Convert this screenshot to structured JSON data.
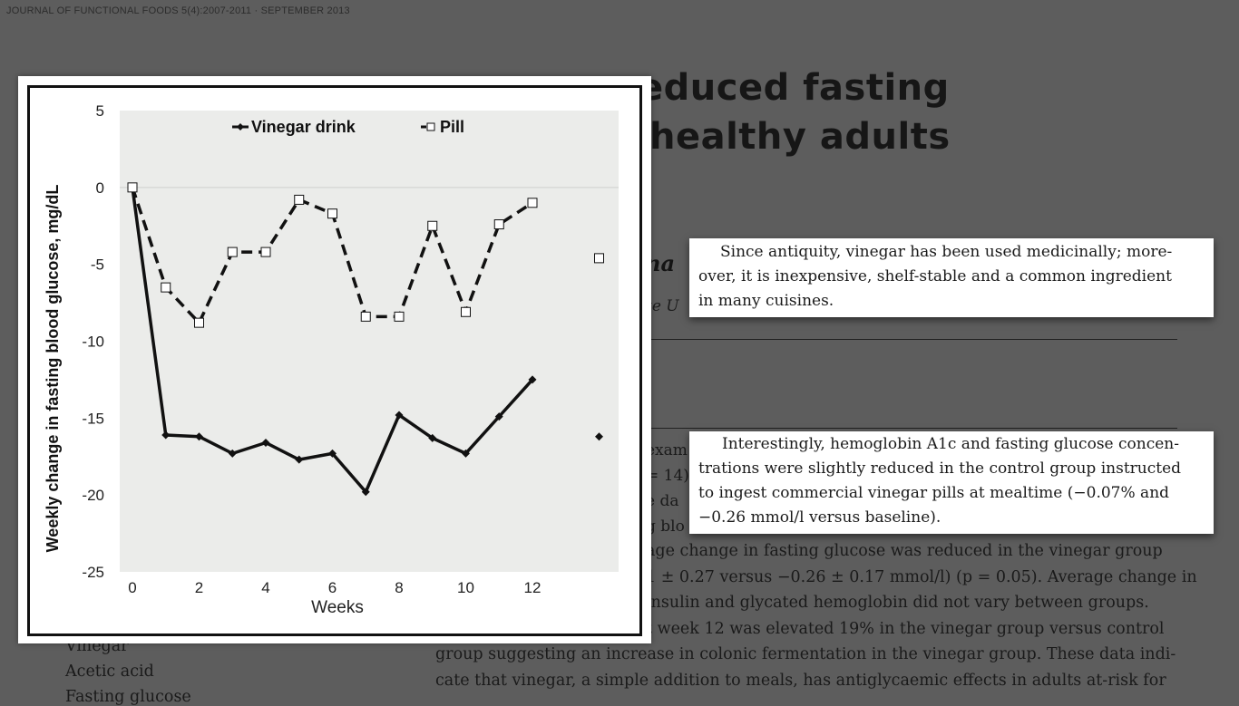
{
  "header": {
    "journal": "JOURNAL OF FUNCTIONAL FOODS 5(4):2007-2011 · SEPTEMBER 2013"
  },
  "article": {
    "title_visible_line1": "educed fasting",
    "title_visible_line2": "healthy adults",
    "author_fragment": "na",
    "affiliation_fragment": "te U",
    "abstract_fragments": [
      "exam",
      "= 14)",
      "e da",
      "g blo"
    ],
    "abstract_lines": [
      "age change in fasting glucose was reduced in the vinegar group",
      "1 ± 0.27 versus −0.26 ± 0.17 mmol/l) (p = 0.05). Average change in",
      "insulin and glycated hemoglobin did not vary between groups.",
      "t week 12 was elevated 19% in the vinegar group versus control",
      "group suggesting an increase in colonic fermentation in the vinegar group. These data indi-",
      "cate that vinegar, a simple addition to meals, has antiglycaemic effects in adults at-risk for"
    ],
    "keywords": [
      "Vinegar",
      "Acetic acid",
      "Fasting glucose"
    ]
  },
  "callouts": {
    "first": [
      "Since antiquity, vinegar has been used medicinally; more-",
      "over, it is inexpensive, shelf-stable and a common ingredient",
      "in many cuisines."
    ],
    "second": [
      "Interestingly, hemoglobin A1c and fasting glucose concen-",
      "trations were slightly reduced in the control group instructed",
      "to ingest commercial vinegar pills at mealtime (−0.07% and",
      "−0.26 mmol/l  versus  baseline)."
    ]
  },
  "chart_data": {
    "type": "line",
    "title": "",
    "xlabel": "Weeks",
    "ylabel": "Weekly change in fasting blood glucose, mg/dL",
    "xlim": [
      0,
      13.2
    ],
    "ylim": [
      -25,
      5
    ],
    "xticks": [
      0,
      2,
      4,
      6,
      8,
      10,
      12
    ],
    "yticks": [
      5,
      0,
      -5,
      -10,
      -15,
      -20,
      -25
    ],
    "grid": false,
    "plot_background": "#ebecea",
    "legend_position": "top",
    "series": [
      {
        "name": "Vinegar drink",
        "style": "solid",
        "marker": "diamond",
        "color": "#111111",
        "x": [
          0,
          1,
          2,
          3,
          4,
          5,
          6,
          7,
          8,
          9,
          10,
          11,
          12
        ],
        "values": [
          0,
          -16.1,
          -16.2,
          -17.3,
          -16.6,
          -17.7,
          -17.3,
          -19.8,
          -14.8,
          -16.3,
          -17.3,
          -14.9,
          -12.5
        ]
      },
      {
        "name": "Pill",
        "style": "dashed",
        "marker": "open-square",
        "color": "#111111",
        "x": [
          0,
          1,
          2,
          3,
          4,
          5,
          6,
          7,
          8,
          9,
          10,
          11,
          12
        ],
        "values": [
          0,
          -6.5,
          -8.8,
          -4.2,
          -4.2,
          -0.8,
          -1.7,
          -8.4,
          -8.4,
          -2.5,
          -8.1,
          -2.4,
          -1.0
        ]
      }
    ],
    "extra_points": [
      {
        "series": "Vinegar drink",
        "x": 14,
        "y": -16.2
      },
      {
        "series": "Pill",
        "x": 14,
        "y": -4.6
      }
    ]
  }
}
